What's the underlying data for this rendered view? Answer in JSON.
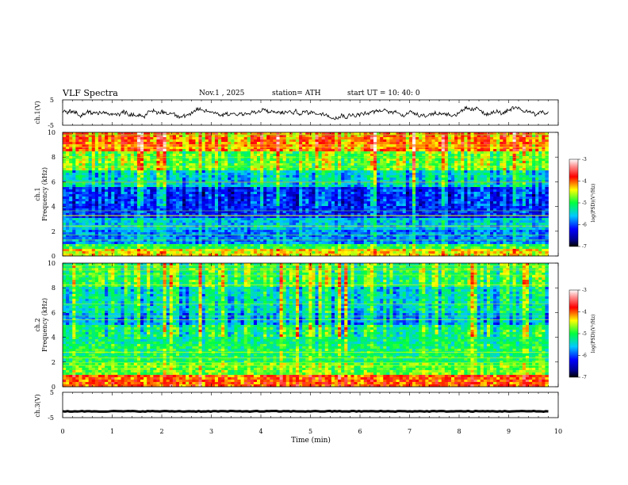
{
  "header": {
    "title": "VLF  Spectra",
    "date": "Nov.1  , 2025",
    "station": "station= ATH",
    "start_ut": "start  UT  =    10: 40: 0"
  },
  "chart_data": [
    {
      "type": "line",
      "id": "ch1_waveform",
      "ylabel": "ch.1(V)",
      "ylim": [
        -5,
        5
      ],
      "yticks": [
        "5",
        "-5"
      ],
      "xlim": [
        0,
        10
      ],
      "description_series": "noisy waveform fluctuating around ~0 V over 0–9.8 min"
    },
    {
      "type": "heatmap",
      "id": "ch1_spectrogram",
      "ylabel": "ch.1\nFrequency (kHz)",
      "ylabel_line1": "ch.1",
      "ylabel_line2": "Frequency  (kHz)",
      "ylim": [
        0,
        10
      ],
      "yticks": [
        "0",
        "2",
        "4",
        "6",
        "8",
        "10"
      ],
      "xlim": [
        0,
        10
      ],
      "data_extent_min": 9.8,
      "colorbar": {
        "label": "log(PSD)(V²/Hz)",
        "range": [
          -7,
          -3
        ],
        "ticks": [
          "-3",
          "-4",
          "-5",
          "-6",
          "-7"
        ]
      }
    },
    {
      "type": "heatmap",
      "id": "ch2_spectrogram",
      "ylabel_line1": "ch.2",
      "ylabel_line2": "Frequency  (kHz)",
      "ylim": [
        0,
        10
      ],
      "yticks": [
        "0",
        "2",
        "4",
        "6",
        "8",
        "10"
      ],
      "xlim": [
        0,
        10
      ],
      "data_extent_min": 9.8,
      "colorbar": {
        "label": "log(PSD)(V²/Hz)",
        "range": [
          -7,
          -3
        ],
        "ticks": [
          "-3",
          "-4",
          "-5",
          "-6",
          "-7"
        ]
      }
    },
    {
      "type": "line",
      "id": "ch3_waveform",
      "ylabel": "ch.3(V)",
      "ylim": [
        -5,
        5
      ],
      "yticks": [
        "5",
        "-5"
      ],
      "xlim": [
        0,
        10
      ],
      "constant_value": -2.5
    }
  ],
  "xaxis": {
    "label": "Time  (min)",
    "ticks": [
      "0",
      "1",
      "2",
      "3",
      "4",
      "5",
      "6",
      "7",
      "8",
      "9",
      "10"
    ]
  }
}
